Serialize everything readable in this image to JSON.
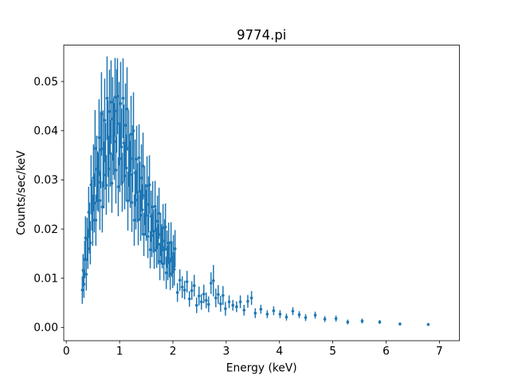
{
  "chart_data": {
    "type": "scatter",
    "style": "points-with-errorbars",
    "title": "9774.pi",
    "xlabel": "Energy (keV)",
    "ylabel": "Counts/sec/keV",
    "marker_color": "#1f77b4",
    "background_color": "#ffffff",
    "spine_color": "#000000",
    "grid": false,
    "legend": null,
    "xlim": [
      -0.048,
      7.375
    ],
    "ylim": [
      -0.0027,
      0.0574
    ],
    "xticks": [
      0,
      1,
      2,
      3,
      4,
      5,
      6,
      7
    ],
    "xtick_labels": [
      "0",
      "1",
      "2",
      "3",
      "4",
      "5",
      "6",
      "7"
    ],
    "yticks": [
      0.0,
      0.01,
      0.02,
      0.03,
      0.04,
      0.05
    ],
    "ytick_labels": [
      "0.00",
      "0.01",
      "0.02",
      "0.03",
      "0.04",
      "0.05"
    ],
    "x": [
      0.3,
      0.315,
      0.33,
      0.345,
      0.36,
      0.375,
      0.39,
      0.405,
      0.42,
      0.435,
      0.45,
      0.465,
      0.48,
      0.495,
      0.51,
      0.525,
      0.54,
      0.555,
      0.57,
      0.585,
      0.6,
      0.615,
      0.63,
      0.645,
      0.66,
      0.675,
      0.69,
      0.705,
      0.72,
      0.735,
      0.75,
      0.765,
      0.78,
      0.795,
      0.81,
      0.825,
      0.84,
      0.855,
      0.87,
      0.885,
      0.9,
      0.915,
      0.93,
      0.945,
      0.96,
      0.975,
      0.99,
      1.005,
      1.02,
      1.035,
      1.05,
      1.065,
      1.08,
      1.095,
      1.11,
      1.125,
      1.14,
      1.155,
      1.17,
      1.185,
      1.2,
      1.215,
      1.23,
      1.245,
      1.26,
      1.275,
      1.29,
      1.305,
      1.32,
      1.335,
      1.35,
      1.365,
      1.38,
      1.395,
      1.41,
      1.425,
      1.44,
      1.455,
      1.47,
      1.485,
      1.5,
      1.515,
      1.53,
      1.545,
      1.56,
      1.575,
      1.59,
      1.605,
      1.62,
      1.635,
      1.65,
      1.665,
      1.68,
      1.695,
      1.71,
      1.725,
      1.74,
      1.755,
      1.77,
      1.785,
      1.8,
      1.815,
      1.83,
      1.845,
      1.86,
      1.875,
      1.89,
      1.905,
      1.92,
      1.935,
      1.95,
      1.965,
      1.98,
      1.995,
      2.01,
      2.025,
      2.04,
      2.085,
      2.13,
      2.175,
      2.22,
      2.265,
      2.31,
      2.355,
      2.4,
      2.445,
      2.49,
      2.535,
      2.58,
      2.625,
      2.67,
      2.715,
      2.76,
      2.805,
      2.85,
      2.895,
      2.94,
      2.985,
      3.055,
      3.125,
      3.195,
      3.265,
      3.335,
      3.405,
      3.475,
      3.545,
      3.65,
      3.77,
      3.89,
      4.01,
      4.13,
      4.25,
      4.37,
      4.49,
      4.67,
      4.85,
      5.06,
      5.28,
      5.55,
      5.88,
      6.26,
      6.79
    ],
    "y": [
      0.0076,
      0.0116,
      0.0088,
      0.0138,
      0.0182,
      0.0108,
      0.0179,
      0.016,
      0.0234,
      0.0202,
      0.0172,
      0.029,
      0.0249,
      0.0218,
      0.0304,
      0.0253,
      0.0364,
      0.0218,
      0.0322,
      0.0298,
      0.0295,
      0.0386,
      0.0258,
      0.0361,
      0.0434,
      0.0245,
      0.0363,
      0.031,
      0.0421,
      0.0348,
      0.0289,
      0.0466,
      0.0384,
      0.0322,
      0.0439,
      0.0354,
      0.0458,
      0.0293,
      0.0424,
      0.0388,
      0.0378,
      0.0468,
      0.032,
      0.044,
      0.047,
      0.0286,
      0.0414,
      0.0343,
      0.0455,
      0.0367,
      0.0295,
      0.0466,
      0.0375,
      0.0308,
      0.0411,
      0.0324,
      0.0444,
      0.0257,
      0.0364,
      0.0325,
      0.0311,
      0.0393,
      0.0254,
      0.0343,
      0.04,
      0.0218,
      0.0314,
      0.0259,
      0.0342,
      0.0274,
      0.0219,
      0.0345,
      0.0277,
      0.0228,
      0.0304,
      0.0239,
      0.0328,
      0.0189,
      0.0268,
      0.0239,
      0.0228,
      0.0288,
      0.0185,
      0.025,
      0.029,
      0.0158,
      0.0226,
      0.0187,
      0.0245,
      0.0196,
      0.0157,
      0.0246,
      0.0198,
      0.0162,
      0.0216,
      0.0169,
      0.0232,
      0.0134,
      0.0189,
      0.0169,
      0.0161,
      0.0203,
      0.013,
      0.0176,
      0.0204,
      0.0111,
      0.0159,
      0.0131,
      0.0172,
      0.0137,
      0.0109,
      0.0173,
      0.0138,
      0.0113,
      0.015,
      0.0118,
      0.016,
      0.0071,
      0.0096,
      0.0082,
      0.0076,
      0.0093,
      0.0058,
      0.0075,
      0.0085,
      0.0045,
      0.0064,
      0.0052,
      0.0068,
      0.0055,
      0.0047,
      0.009,
      0.0095,
      0.006,
      0.0067,
      0.0048,
      0.0065,
      0.0038,
      0.0052,
      0.0045,
      0.0042,
      0.0052,
      0.0035,
      0.0053,
      0.006,
      0.0029,
      0.0037,
      0.0027,
      0.0034,
      0.0027,
      0.0021,
      0.0033,
      0.0026,
      0.002,
      0.0025,
      0.0017,
      0.0018,
      0.0011,
      0.0013,
      0.0011,
      0.0007,
      0.0006
    ],
    "yerr": [
      0.0028,
      0.0033,
      0.0028,
      0.0038,
      0.0044,
      0.0033,
      0.0044,
      0.0041,
      0.0052,
      0.0052,
      0.0044,
      0.006,
      0.0052,
      0.0052,
      0.0068,
      0.006,
      0.0078,
      0.0052,
      0.0068,
      0.006,
      0.006,
      0.0078,
      0.006,
      0.0078,
      0.0085,
      0.0052,
      0.0078,
      0.0068,
      0.0085,
      0.0068,
      0.006,
      0.0085,
      0.0078,
      0.0068,
      0.0085,
      0.0068,
      0.0085,
      0.006,
      0.0085,
      0.0078,
      0.0078,
      0.008,
      0.0068,
      0.0085,
      0.0077,
      0.006,
      0.0085,
      0.0068,
      0.0085,
      0.0078,
      0.006,
      0.0081,
      0.0078,
      0.0068,
      0.0085,
      0.0068,
      0.0085,
      0.006,
      0.0078,
      0.0068,
      0.0068,
      0.0078,
      0.006,
      0.0068,
      0.0078,
      0.0052,
      0.0068,
      0.006,
      0.0068,
      0.006,
      0.0052,
      0.0068,
      0.006,
      0.0052,
      0.0068,
      0.0052,
      0.0068,
      0.0044,
      0.006,
      0.0052,
      0.0052,
      0.006,
      0.0044,
      0.0057,
      0.006,
      0.0038,
      0.0052,
      0.0044,
      0.0052,
      0.0044,
      0.0038,
      0.0052,
      0.0044,
      0.0041,
      0.0052,
      0.0041,
      0.0052,
      0.0038,
      0.0044,
      0.0041,
      0.0041,
      0.0048,
      0.0035,
      0.0044,
      0.0048,
      0.0033,
      0.0038,
      0.0035,
      0.0041,
      0.0035,
      0.0033,
      0.0041,
      0.0035,
      0.0033,
      0.0038,
      0.0033,
      0.0038,
      0.0019,
      0.0022,
      0.0022,
      0.0019,
      0.0022,
      0.0016,
      0.0019,
      0.0022,
      0.0016,
      0.0019,
      0.0016,
      0.0019,
      0.0016,
      0.0016,
      0.0022,
      0.0032,
      0.0019,
      0.0019,
      0.0016,
      0.0019,
      0.0014,
      0.0013,
      0.0011,
      0.0011,
      0.0013,
      0.0011,
      0.0013,
      0.0014,
      0.001,
      0.0009,
      0.0008,
      0.0009,
      0.0008,
      0.0007,
      0.0008,
      0.0007,
      0.0007,
      0.0007,
      0.0006,
      0.0006,
      0.0005,
      0.0005,
      0.0004,
      0.0003,
      0.0003
    ]
  }
}
